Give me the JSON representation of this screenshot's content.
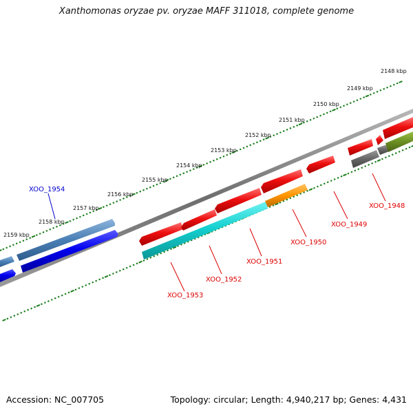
{
  "title": "Xanthomonas oryzae pv. oryzae MAFF 311018, complete genome",
  "footer": {
    "accession": "Accession: NC_007705",
    "topology": "Topology: circular; Length: 4,940,217 bp; Genes: 4,431"
  },
  "colors": {
    "tick_green": "#1a7d1a",
    "backbone": "#7a7a7a",
    "reverse_label": "#dd0000",
    "forward_label": "#0000cc"
  },
  "scale": {
    "labels": [
      "2148 kbp",
      "2149 kbp",
      "2150 kbp",
      "2151 kbp",
      "2152 kbp",
      "2153 kbp",
      "2154 kbp",
      "2155 kbp",
      "2156 kbp",
      "2157 kbp",
      "2158 kbp",
      "2159 kbp"
    ]
  },
  "genes": [
    {
      "id": "XOO_1954",
      "strand": "+",
      "color": "#4a7fb5",
      "labeled": true
    },
    {
      "id": "XOO_1953",
      "strand": "-",
      "color": "#ee1111",
      "labeled": true
    },
    {
      "id": "XOO_1952",
      "strand": "-",
      "color": "#ee1111",
      "labeled": true
    },
    {
      "id": "XOO_1951",
      "strand": "-",
      "color": "#ee1111",
      "labeled": true
    },
    {
      "id": "XOO_1950",
      "strand": "-",
      "color": "#ee1111",
      "labeled": true
    },
    {
      "id": "XOO_1949",
      "strand": "-",
      "color": "#ee1111",
      "labeled": true
    },
    {
      "id": "XOO_1948",
      "strand": "-",
      "color": "#666666",
      "labeled": true
    }
  ]
}
